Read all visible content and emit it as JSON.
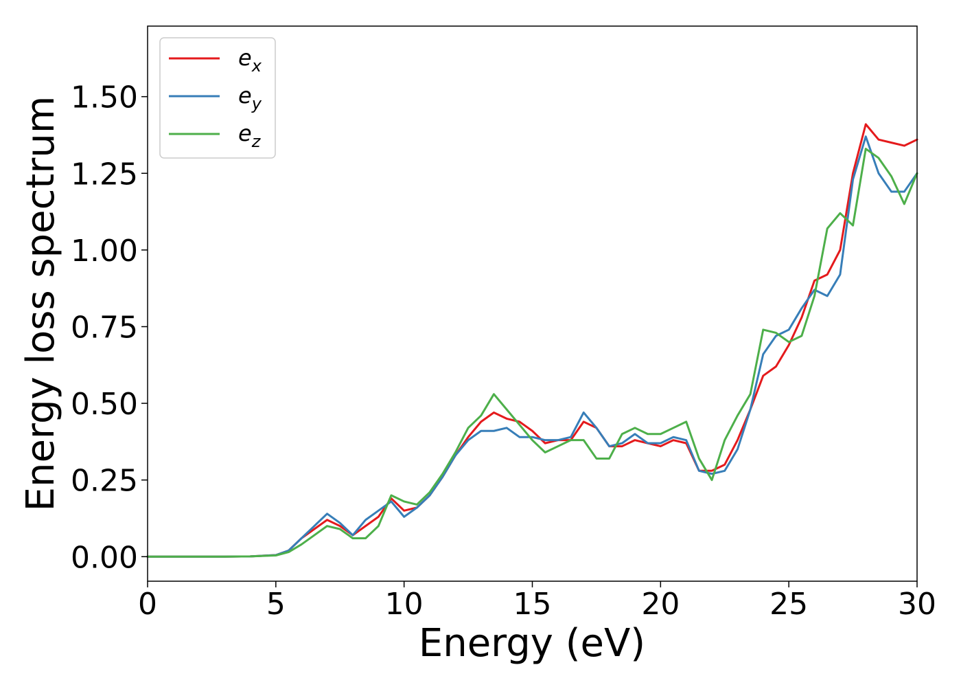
{
  "chart_data": {
    "type": "line",
    "xlabel": "Energy (eV)",
    "ylabel": "Energy loss spectrum",
    "xlim": [
      0,
      30
    ],
    "ylim": [
      -0.08,
      1.73
    ],
    "xticks": [
      "0",
      "5",
      "10",
      "15",
      "20",
      "25",
      "30"
    ],
    "yticks": [
      "0.00",
      "0.25",
      "0.50",
      "0.75",
      "1.00",
      "1.25",
      "1.50"
    ],
    "grid": false,
    "legend_position": "top-left",
    "x": [
      0,
      1,
      2,
      3,
      4,
      5,
      5.5,
      6,
      6.5,
      7,
      7.5,
      8,
      8.5,
      9,
      9.5,
      10,
      10.5,
      11,
      11.5,
      12,
      12.5,
      13,
      13.5,
      14,
      14.5,
      15,
      15.5,
      16,
      16.5,
      17,
      17.5,
      18,
      18.5,
      19,
      19.5,
      20,
      20.5,
      21,
      21.5,
      22,
      22.5,
      23,
      23.5,
      24,
      24.5,
      25,
      25.5,
      26,
      26.5,
      27,
      27.5,
      28,
      28.5,
      29,
      29.5,
      30
    ],
    "series": [
      {
        "name": "e",
        "subscript": "x",
        "color": "#e41a1c",
        "values": [
          0.0,
          0.0,
          0.0,
          0.0,
          0.001,
          0.005,
          0.02,
          0.06,
          0.09,
          0.12,
          0.1,
          0.07,
          0.1,
          0.13,
          0.19,
          0.15,
          0.16,
          0.2,
          0.26,
          0.33,
          0.39,
          0.44,
          0.47,
          0.45,
          0.44,
          0.41,
          0.37,
          0.38,
          0.38,
          0.44,
          0.42,
          0.36,
          0.36,
          0.38,
          0.37,
          0.36,
          0.38,
          0.37,
          0.28,
          0.28,
          0.3,
          0.38,
          0.48,
          0.59,
          0.62,
          0.69,
          0.78,
          0.9,
          0.92,
          1.0,
          1.25,
          1.41,
          1.36,
          1.35,
          1.34,
          1.36
        ]
      },
      {
        "name": "e",
        "subscript": "y",
        "color": "#377eb8",
        "values": [
          0.0,
          0.0,
          0.0,
          0.0,
          0.001,
          0.005,
          0.02,
          0.06,
          0.1,
          0.14,
          0.11,
          0.07,
          0.12,
          0.15,
          0.18,
          0.13,
          0.16,
          0.2,
          0.26,
          0.33,
          0.38,
          0.41,
          0.41,
          0.42,
          0.39,
          0.39,
          0.38,
          0.38,
          0.39,
          0.47,
          0.42,
          0.36,
          0.37,
          0.4,
          0.37,
          0.37,
          0.39,
          0.38,
          0.28,
          0.27,
          0.28,
          0.35,
          0.48,
          0.66,
          0.72,
          0.74,
          0.81,
          0.87,
          0.85,
          0.92,
          1.23,
          1.37,
          1.25,
          1.19,
          1.19,
          1.25
        ]
      },
      {
        "name": "e",
        "subscript": "z",
        "color": "#4daf4a",
        "values": [
          0.0,
          0.0,
          0.0,
          0.0,
          0.001,
          0.004,
          0.015,
          0.04,
          0.07,
          0.1,
          0.09,
          0.06,
          0.06,
          0.1,
          0.2,
          0.18,
          0.17,
          0.21,
          0.27,
          0.34,
          0.42,
          0.46,
          0.53,
          0.48,
          0.43,
          0.38,
          0.34,
          0.36,
          0.38,
          0.38,
          0.32,
          0.32,
          0.4,
          0.42,
          0.4,
          0.4,
          0.42,
          0.44,
          0.32,
          0.25,
          0.38,
          0.46,
          0.53,
          0.74,
          0.73,
          0.7,
          0.72,
          0.85,
          1.07,
          1.12,
          1.08,
          1.33,
          1.3,
          1.24,
          1.15,
          1.25
        ]
      }
    ]
  }
}
